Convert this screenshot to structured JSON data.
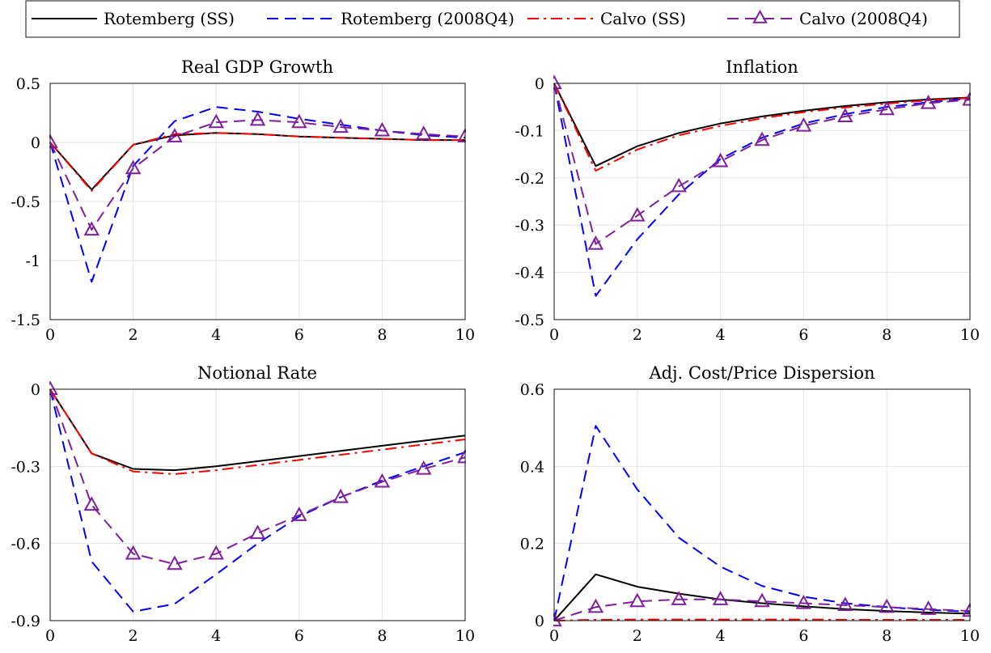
{
  "legend": {
    "placement": "top",
    "entries": [
      {
        "label": "Rotemberg (SS)",
        "color": "#000000",
        "style": "solid",
        "marker": "none"
      },
      {
        "label": "Rotemberg (2008Q4)",
        "color": "#0000ff",
        "style": "dashed",
        "marker": "none"
      },
      {
        "label": "Calvo (SS)",
        "color": "#ff0000",
        "style": "dashdot",
        "marker": "none"
      },
      {
        "label": "Calvo (2008Q4)",
        "color": "#7e1e9c",
        "style": "dashed",
        "marker": "triangle"
      }
    ]
  },
  "chart_data": [
    {
      "type": "line",
      "title": "Real GDP Growth",
      "xlabel": "",
      "ylabel": "",
      "xlim": [
        0,
        10
      ],
      "ylim": [
        -1.5,
        0.5
      ],
      "xticks": [
        0,
        2,
        4,
        6,
        8,
        10
      ],
      "xticklabels": [
        "0",
        "2",
        "4",
        "6",
        "8",
        "10"
      ],
      "yticks": [
        -1.5,
        -1,
        -0.5,
        0,
        0.5
      ],
      "yticklabels": [
        "-1.5",
        "-1",
        "-0.5",
        "0",
        "0.5"
      ],
      "grid": true,
      "x": [
        0,
        1,
        2,
        3,
        4,
        5,
        6,
        7,
        8,
        9,
        10
      ],
      "series": [
        {
          "name": "Rotemberg (SS)",
          "values": [
            0,
            -0.4,
            -0.02,
            0.06,
            0.08,
            0.07,
            0.05,
            0.04,
            0.03,
            0.02,
            0.02
          ]
        },
        {
          "name": "Rotemberg (2008Q4)",
          "values": [
            0,
            -1.18,
            -0.2,
            0.18,
            0.3,
            0.26,
            0.2,
            0.15,
            0.1,
            0.06,
            0.04
          ]
        },
        {
          "name": "Calvo (SS)",
          "values": [
            0,
            -0.41,
            -0.02,
            0.07,
            0.08,
            0.07,
            0.05,
            0.04,
            0.03,
            0.02,
            0.02
          ]
        },
        {
          "name": "Calvo (2008Q4)",
          "values": [
            0,
            -0.74,
            -0.22,
            0.05,
            0.17,
            0.19,
            0.17,
            0.13,
            0.1,
            0.07,
            0.05
          ]
        }
      ]
    },
    {
      "type": "line",
      "title": "Inflation",
      "xlabel": "",
      "ylabel": "",
      "xlim": [
        0,
        10
      ],
      "ylim": [
        -0.5,
        0
      ],
      "xticks": [
        0,
        2,
        4,
        6,
        8,
        10
      ],
      "xticklabels": [
        "0",
        "2",
        "4",
        "6",
        "8",
        "10"
      ],
      "yticks": [
        -0.5,
        -0.4,
        -0.3,
        -0.2,
        -0.1,
        0
      ],
      "yticklabels": [
        "-0.5",
        "-0.4",
        "-0.3",
        "-0.2",
        "-0.1",
        "0"
      ],
      "grid": true,
      "x": [
        0,
        1,
        2,
        3,
        4,
        5,
        6,
        7,
        8,
        9,
        10
      ],
      "series": [
        {
          "name": "Rotemberg (SS)",
          "values": [
            0,
            -0.175,
            -0.133,
            -0.105,
            -0.085,
            -0.07,
            -0.058,
            -0.048,
            -0.04,
            -0.034,
            -0.03
          ]
        },
        {
          "name": "Rotemberg (2008Q4)",
          "values": [
            0,
            -0.45,
            -0.33,
            -0.235,
            -0.16,
            -0.115,
            -0.085,
            -0.065,
            -0.05,
            -0.04,
            -0.032
          ]
        },
        {
          "name": "Calvo (SS)",
          "values": [
            0,
            -0.185,
            -0.14,
            -0.11,
            -0.09,
            -0.074,
            -0.061,
            -0.051,
            -0.043,
            -0.036,
            -0.031
          ]
        },
        {
          "name": "Calvo (2008Q4)",
          "values": [
            0,
            -0.34,
            -0.28,
            -0.218,
            -0.165,
            -0.12,
            -0.09,
            -0.07,
            -0.055,
            -0.042,
            -0.035
          ]
        }
      ]
    },
    {
      "type": "line",
      "title": "Notional Rate",
      "xlabel": "",
      "ylabel": "",
      "xlim": [
        0,
        10
      ],
      "ylim": [
        -0.9,
        0
      ],
      "xticks": [
        0,
        2,
        4,
        6,
        8,
        10
      ],
      "xticklabels": [
        "0",
        "2",
        "4",
        "6",
        "8",
        "10"
      ],
      "yticks": [
        -0.9,
        -0.6,
        -0.3,
        0
      ],
      "yticklabels": [
        "-0.9",
        "-0.6",
        "-0.3",
        "0"
      ],
      "grid": true,
      "x": [
        0,
        1,
        2,
        3,
        4,
        5,
        6,
        7,
        8,
        9,
        10
      ],
      "series": [
        {
          "name": "Rotemberg (SS)",
          "values": [
            0,
            -0.25,
            -0.31,
            -0.315,
            -0.3,
            -0.28,
            -0.26,
            -0.24,
            -0.22,
            -0.2,
            -0.18
          ]
        },
        {
          "name": "Rotemberg (2008Q4)",
          "values": [
            0,
            -0.67,
            -0.865,
            -0.835,
            -0.72,
            -0.6,
            -0.495,
            -0.42,
            -0.355,
            -0.3,
            -0.245
          ]
        },
        {
          "name": "Calvo (SS)",
          "values": [
            0,
            -0.25,
            -0.32,
            -0.33,
            -0.315,
            -0.295,
            -0.275,
            -0.255,
            -0.235,
            -0.215,
            -0.195
          ]
        },
        {
          "name": "Calvo (2008Q4)",
          "values": [
            0,
            -0.45,
            -0.64,
            -0.68,
            -0.64,
            -0.56,
            -0.49,
            -0.42,
            -0.36,
            -0.31,
            -0.265
          ]
        }
      ]
    },
    {
      "type": "line",
      "title": "Adj. Cost/Price Dispersion",
      "xlabel": "",
      "ylabel": "",
      "xlim": [
        0,
        10
      ],
      "ylim": [
        0,
        0.6
      ],
      "xticks": [
        0,
        2,
        4,
        6,
        8,
        10
      ],
      "xticklabels": [
        "0",
        "2",
        "4",
        "6",
        "8",
        "10"
      ],
      "yticks": [
        0,
        0.2,
        0.4,
        0.6
      ],
      "yticklabels": [
        "0",
        "0.2",
        "0.4",
        "0.6"
      ],
      "grid": true,
      "x": [
        0,
        1,
        2,
        3,
        4,
        5,
        6,
        7,
        8,
        9,
        10
      ],
      "series": [
        {
          "name": "Rotemberg (SS)",
          "values": [
            0,
            0.12,
            0.088,
            0.07,
            0.055,
            0.045,
            0.037,
            0.03,
            0.025,
            0.021,
            0.018
          ]
        },
        {
          "name": "Rotemberg (2008Q4)",
          "values": [
            0,
            0.505,
            0.34,
            0.215,
            0.14,
            0.09,
            0.062,
            0.045,
            0.035,
            0.028,
            0.023
          ]
        },
        {
          "name": "Calvo (SS)",
          "values": [
            0,
            0.002,
            0.003,
            0.003,
            0.003,
            0.003,
            0.003,
            0.002,
            0.002,
            0.002,
            0.002
          ]
        },
        {
          "name": "Calvo (2008Q4)",
          "values": [
            0,
            0.035,
            0.05,
            0.055,
            0.055,
            0.05,
            0.045,
            0.04,
            0.035,
            0.03,
            0.025
          ]
        }
      ]
    }
  ]
}
